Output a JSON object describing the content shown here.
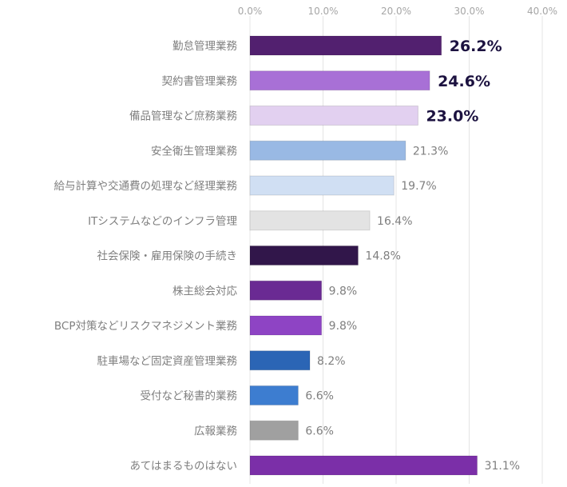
{
  "chart_data": {
    "type": "bar",
    "orientation": "horizontal",
    "title": "",
    "xlabel": "",
    "ylabel": "",
    "xlim": [
      0,
      40
    ],
    "x_ticks": [
      "0.0%",
      "10.0%",
      "20.0%",
      "30.0%",
      "40.0%"
    ],
    "x_tick_values": [
      0,
      10,
      20,
      30,
      40
    ],
    "grid": true,
    "axis_position": "top",
    "categories": [
      "勤怠管理業務",
      "契約書管理業務",
      "備品管理など庶務業務",
      "安全衛生管理業務",
      "給与計算や交通費の処理など経理業務",
      "ITシステムなどのインフラ管理",
      "社会保険・雇用保険の手続き",
      "株主総会対応",
      "BCP対策などリスクマネジメント業務",
      "駐車場など固定資産管理業務",
      "受付など秘書的業務",
      "広報業務",
      "あてはまるものはない"
    ],
    "values": [
      26.2,
      24.6,
      23.0,
      21.3,
      19.7,
      16.4,
      14.8,
      9.8,
      9.8,
      8.2,
      6.6,
      6.6,
      31.1
    ],
    "data_labels": [
      "26.2%",
      "24.6%",
      "23.0%",
      "21.3%",
      "19.7%",
      "16.4%",
      "14.8%",
      "9.8%",
      "9.8%",
      "8.2%",
      "6.6%",
      "6.6%",
      "31.1%"
    ],
    "highlighted": [
      true,
      true,
      true,
      false,
      false,
      false,
      false,
      false,
      false,
      false,
      false,
      false,
      false
    ],
    "colors": [
      "#52206f",
      "#a870d6",
      "#e2d0f0",
      "#99b9e4",
      "#d0dff3",
      "#e3e3e3",
      "#31164a",
      "#6a2a93",
      "#8e44c4",
      "#2b65b5",
      "#3d7dd0",
      "#a0a0a0",
      "#7b2fa8"
    ]
  }
}
